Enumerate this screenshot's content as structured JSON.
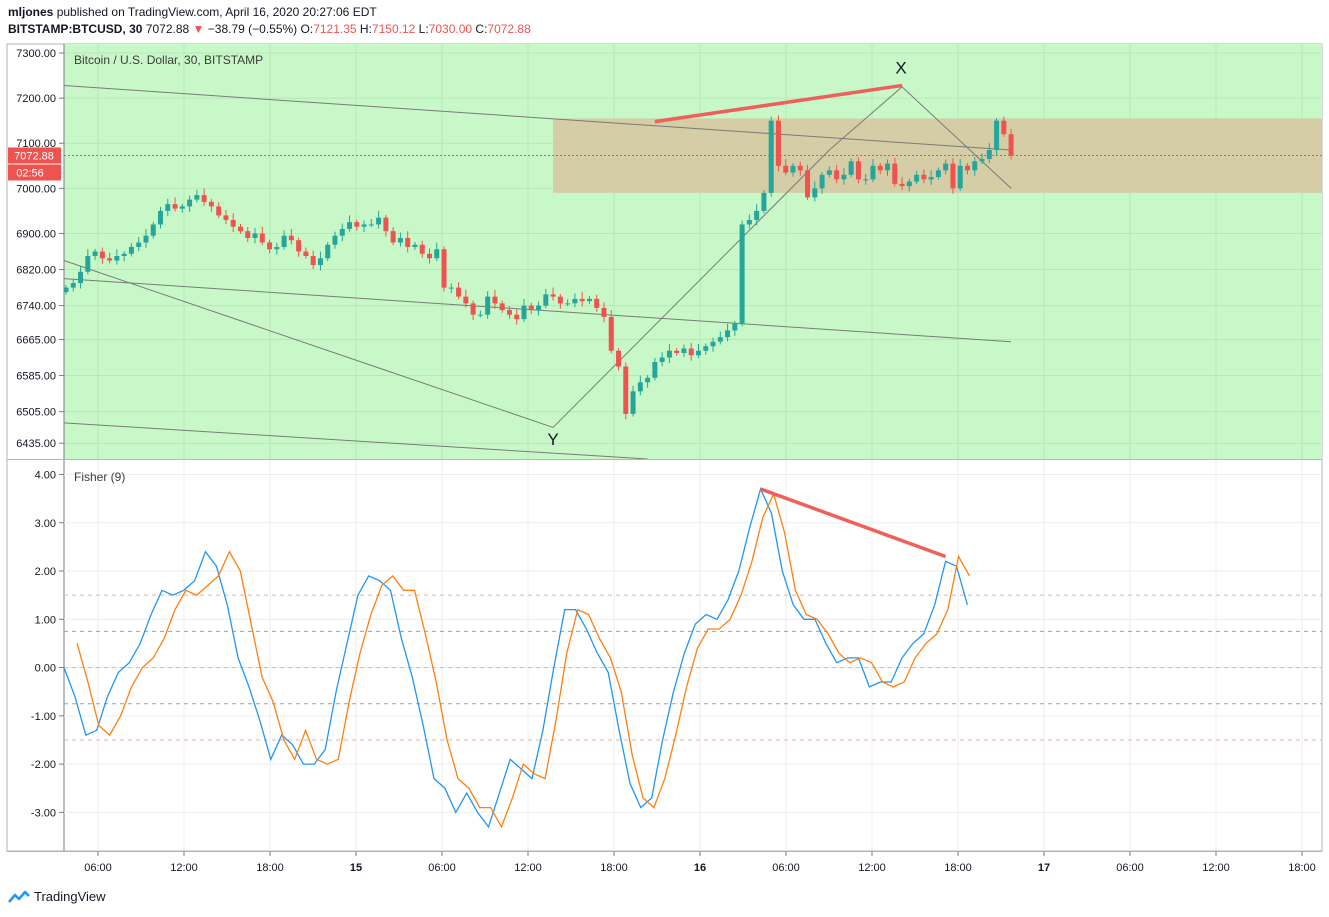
{
  "header": {
    "author": "mljones",
    "published": "published on TradingView.com, April 16, 2020 20:27:06 EDT",
    "symbol": "BITSTAMP:BTCUSD, 30",
    "last": "7072.88",
    "change": "−38.79 (−0.55%)",
    "o_label": "O:",
    "o_value": "7121.35",
    "h_label": "H:",
    "h_value": "7150.12",
    "l_label": "L:",
    "l_value": "7030.00",
    "c_label": "C:",
    "c_value": "7072.88",
    "down_arrow": "▼"
  },
  "colors": {
    "up": "#26a69a",
    "down": "#ef5350",
    "background_top": "#c8f8c8",
    "zone": "#d6c6a0",
    "fisher": "#2196f3",
    "trigger": "#ff7f0e",
    "divergence": "#f0605a",
    "trendline": "#7a7a7a"
  },
  "footer": {
    "brand": "TradingView"
  },
  "chart_data": [
    {
      "type": "candlestick",
      "title": "Bitcoin / U.S. Dollar, 30, BITSTAMP",
      "ylim": [
        6400,
        7320
      ],
      "y_ticks": [
        "7300.00",
        "7200.00",
        "7100.00",
        "7000.00",
        "6900.00",
        "6820.00",
        "6740.00",
        "6665.00",
        "6585.00",
        "6505.00",
        "6435.00"
      ],
      "x_ticks": [
        "06:00",
        "12:00",
        "18:00",
        "15",
        "06:00",
        "12:00",
        "18:00",
        "16",
        "06:00",
        "12:00",
        "18:00",
        "17",
        "06:00",
        "12:00",
        "18:00"
      ],
      "last_price_label": "7072.88",
      "countdown_label": "02:56",
      "annotations": [
        "X",
        "Y"
      ],
      "close": [
        6780,
        6790,
        6815,
        6850,
        6860,
        6845,
        6840,
        6850,
        6855,
        6870,
        6880,
        6895,
        6920,
        6950,
        6965,
        6955,
        6960,
        6975,
        6985,
        6970,
        6960,
        6940,
        6930,
        6915,
        6905,
        6890,
        6900,
        6880,
        6865,
        6870,
        6895,
        6885,
        6860,
        6850,
        6830,
        6845,
        6875,
        6895,
        6910,
        6925,
        6915,
        6920,
        6920,
        6935,
        6905,
        6880,
        6890,
        6870,
        6875,
        6855,
        6845,
        6865,
        6780,
        6780,
        6760,
        6745,
        6720,
        6720,
        6760,
        6745,
        6730,
        6720,
        6710,
        6740,
        6730,
        6740,
        6765,
        6760,
        6745,
        6745,
        6755,
        6750,
        6755,
        6735,
        6715,
        6640,
        6605,
        6500,
        6550,
        6570,
        6580,
        6615,
        6625,
        6640,
        6635,
        6645,
        6630,
        6640,
        6650,
        6660,
        6670,
        6685,
        6700,
        6920,
        6930,
        6950,
        6990,
        7150,
        7050,
        7035,
        7050,
        7040,
        6980,
        7000,
        7030,
        7040,
        7020,
        7030,
        7060,
        7020,
        7020,
        7050,
        7040,
        7055,
        7010,
        7005,
        7015,
        7030,
        7020,
        7025,
        7040,
        7055,
        7000,
        7050,
        7040,
        7060,
        7065,
        7085,
        7150,
        7120,
        7072.88
      ],
      "trendlines": [
        {
          "from": [
            0,
            7228
          ],
          "to": [
            130,
            7085
          ]
        },
        {
          "from": [
            0,
            6800
          ],
          "to": [
            130,
            6660
          ]
        },
        {
          "from": [
            0,
            6480
          ],
          "to": [
            80,
            6400
          ]
        },
        {
          "from": [
            0,
            6840
          ],
          "to": [
            67,
            6470
          ]
        },
        {
          "from": [
            67,
            6470
          ],
          "to": [
            105,
            7085
          ]
        },
        {
          "from": [
            105,
            7085
          ],
          "to": [
            115,
            7225
          ]
        },
        {
          "from": [
            115,
            7225
          ],
          "to": [
            130,
            7000
          ]
        }
      ],
      "zone": {
        "x_from": 67,
        "x_to": 130,
        "y_from": 6990,
        "y_to": 7155
      },
      "divergence_line": {
        "from": [
          81,
          7148
        ],
        "to": [
          115,
          7228
        ]
      }
    },
    {
      "type": "line",
      "title": "Fisher (9)",
      "ylim": [
        -3.8,
        4.3
      ],
      "y_ticks": [
        "4.00",
        "3.00",
        "2.00",
        "1.00",
        "0.00",
        "-1.00",
        "-2.00",
        "-3.00"
      ],
      "levels": [
        1.5,
        0.75,
        0,
        -0.75,
        -1.5
      ],
      "series": [
        {
          "values": [
            0.0,
            -0.6,
            -1.4,
            -1.3,
            -0.6,
            -0.1,
            0.1,
            0.5,
            1.1,
            1.6,
            1.5,
            1.6,
            1.8,
            2.4,
            2.1,
            1.3,
            0.2,
            -0.4,
            -1.1,
            -1.9,
            -1.4,
            -1.6,
            -2.0,
            -2.0,
            -1.7,
            -0.5,
            0.5,
            1.5,
            1.9,
            1.8,
            1.6,
            0.6,
            -0.2,
            -1.2,
            -2.3,
            -2.5,
            -3.0,
            -2.6,
            -3.0,
            -3.3,
            -2.6,
            -1.9,
            -2.1,
            -2.3,
            -1.3,
            0.0,
            1.2,
            1.2,
            0.8,
            0.3,
            -0.1,
            -1.3,
            -2.4,
            -2.9,
            -2.7,
            -1.5,
            -0.5,
            0.3,
            0.9,
            1.1,
            1.0,
            1.4,
            2.0,
            2.9,
            3.7,
            3.2,
            2.0,
            1.3,
            1.0,
            1.0,
            0.5,
            0.1,
            0.2,
            0.2,
            -0.4,
            -0.3,
            -0.3,
            0.2,
            0.5,
            0.7,
            1.3,
            2.2,
            2.1,
            1.3
          ],
          "x_start": 0
        },
        {
          "values": [
            0.5,
            -0.3,
            -1.2,
            -1.4,
            -1.0,
            -0.4,
            0.0,
            0.2,
            0.6,
            1.2,
            1.6,
            1.5,
            1.7,
            1.9,
            2.4,
            2.0,
            0.9,
            -0.2,
            -0.7,
            -1.5,
            -1.9,
            -1.3,
            -1.9,
            -2.0,
            -1.9,
            -0.7,
            0.3,
            1.1,
            1.7,
            1.9,
            1.6,
            1.6,
            0.7,
            -0.3,
            -1.5,
            -2.3,
            -2.5,
            -2.9,
            -2.9,
            -3.3,
            -2.7,
            -2.0,
            -2.2,
            -2.3,
            -1.1,
            0.3,
            1.2,
            1.1,
            0.6,
            0.2,
            -0.5,
            -1.8,
            -2.7,
            -2.9,
            -2.3,
            -1.4,
            -0.4,
            0.4,
            0.8,
            0.8,
            1.0,
            1.5,
            2.2,
            3.1,
            3.6,
            2.8,
            1.6,
            1.1,
            1.0,
            0.7,
            0.3,
            0.1,
            0.2,
            0.1,
            -0.3,
            -0.4,
            -0.3,
            0.2,
            0.5,
            0.7,
            1.2,
            2.3,
            1.9
          ],
          "x_start": 0
        }
      ],
      "divergence_line": {
        "from": [
          64,
          3.7
        ],
        "to": [
          81,
          2.3
        ]
      }
    }
  ]
}
